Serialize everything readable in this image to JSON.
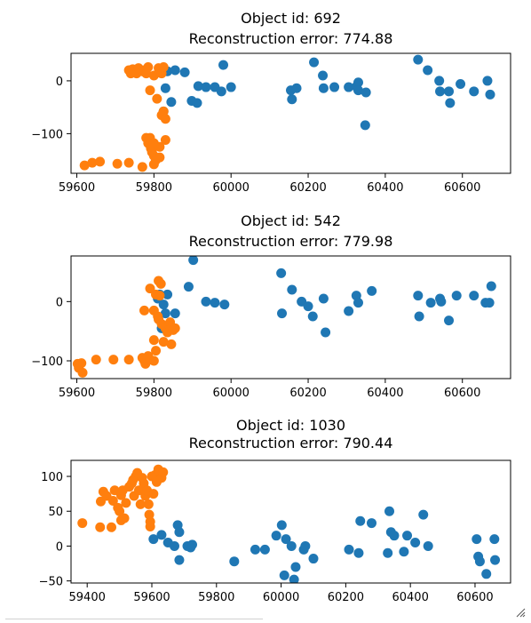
{
  "chart_data": [
    {
      "type": "scatter",
      "title": "Object id: 692\nReconstruction error: 774.88",
      "xlim": [
        59585,
        60725
      ],
      "ylim": [
        -175,
        52
      ],
      "xticks": [
        59600,
        59800,
        60000,
        60200,
        60400,
        60600
      ],
      "yticks": [
        -100,
        0
      ],
      "xlabel": "",
      "ylabel": "",
      "series": [
        {
          "color": "#1f77b4",
          "points": [
            [
              59825,
              -58
            ],
            [
              59830,
              -14
            ],
            [
              59835,
              18
            ],
            [
              59845,
              -40
            ],
            [
              59855,
              20
            ],
            [
              59880,
              16
            ],
            [
              59898,
              -38
            ],
            [
              59912,
              -42
            ],
            [
              59915,
              -10
            ],
            [
              59935,
              -12
            ],
            [
              59958,
              -12
            ],
            [
              59975,
              -20
            ],
            [
              59980,
              30
            ],
            [
              60000,
              -12
            ],
            [
              60155,
              -18
            ],
            [
              60158,
              -35
            ],
            [
              60170,
              -14
            ],
            [
              60215,
              35
            ],
            [
              60238,
              10
            ],
            [
              60240,
              -14
            ],
            [
              60268,
              -12
            ],
            [
              60305,
              -12
            ],
            [
              60325,
              -11
            ],
            [
              60330,
              -3
            ],
            [
              60330,
              -18
            ],
            [
              60348,
              -84
            ],
            [
              60350,
              -22
            ],
            [
              60485,
              40
            ],
            [
              60510,
              20
            ],
            [
              60540,
              0
            ],
            [
              60542,
              -20
            ],
            [
              60565,
              -20
            ],
            [
              60568,
              -42
            ],
            [
              60595,
              -6
            ],
            [
              60630,
              -20
            ],
            [
              60665,
              0
            ],
            [
              60672,
              -26
            ]
          ]
        },
        {
          "color": "#ff7f0e",
          "points": [
            [
              59620,
              -160
            ],
            [
              59640,
              -155
            ],
            [
              59660,
              -153
            ],
            [
              59705,
              -157
            ],
            [
              59735,
              -155
            ],
            [
              59770,
              -163
            ],
            [
              59735,
              20
            ],
            [
              59740,
              14
            ],
            [
              59745,
              22
            ],
            [
              59755,
              14
            ],
            [
              59760,
              24
            ],
            [
              59770,
              18
            ],
            [
              59775,
              20
            ],
            [
              59780,
              14
            ],
            [
              59785,
              26
            ],
            [
              59790,
              -18
            ],
            [
              59800,
              10
            ],
            [
              59808,
              -34
            ],
            [
              59812,
              24
            ],
            [
              59815,
              18
            ],
            [
              59820,
              14
            ],
            [
              59825,
              26
            ],
            [
              59820,
              -65
            ],
            [
              59825,
              -58
            ],
            [
              59830,
              -72
            ],
            [
              59830,
              -112
            ],
            [
              59780,
              -108
            ],
            [
              59785,
              -118
            ],
            [
              59790,
              -108
            ],
            [
              59792,
              -128
            ],
            [
              59795,
              -135
            ],
            [
              59800,
              -118
            ],
            [
              59800,
              -142
            ],
            [
              59805,
              -150
            ],
            [
              59815,
              -125
            ],
            [
              59815,
              -145
            ],
            [
              59800,
              -158
            ]
          ]
        }
      ]
    },
    {
      "type": "scatter",
      "title": "Object id: 542\nReconstruction error: 779.98",
      "xlim": [
        59585,
        60725
      ],
      "ylim": [
        -130,
        77
      ],
      "xticks": [
        59600,
        59800,
        60000,
        60200,
        60400,
        60600
      ],
      "yticks": [
        -100,
        0
      ],
      "xlabel": "",
      "ylabel": "",
      "series": [
        {
          "color": "#1f77b4",
          "points": [
            [
              59810,
              5
            ],
            [
              59815,
              12
            ],
            [
              59820,
              -45
            ],
            [
              59825,
              -5
            ],
            [
              59830,
              -20
            ],
            [
              59835,
              12
            ],
            [
              59855,
              -20
            ],
            [
              59890,
              25
            ],
            [
              59902,
              70
            ],
            [
              59935,
              0
            ],
            [
              59958,
              -2
            ],
            [
              59983,
              -5
            ],
            [
              60130,
              48
            ],
            [
              60132,
              -20
            ],
            [
              60158,
              20
            ],
            [
              60183,
              0
            ],
            [
              60200,
              -8
            ],
            [
              60212,
              -25
            ],
            [
              60240,
              5
            ],
            [
              60245,
              -52
            ],
            [
              60305,
              -16
            ],
            [
              60325,
              10
            ],
            [
              60330,
              -2
            ],
            [
              60365,
              18
            ],
            [
              60485,
              10
            ],
            [
              60488,
              -25
            ],
            [
              60518,
              -2
            ],
            [
              60542,
              5
            ],
            [
              60545,
              0
            ],
            [
              60565,
              -32
            ],
            [
              60585,
              10
            ],
            [
              60630,
              10
            ],
            [
              60660,
              -2
            ],
            [
              60670,
              -2
            ],
            [
              60675,
              26
            ]
          ]
        },
        {
          "color": "#ff7f0e",
          "points": [
            [
              59602,
              -105
            ],
            [
              59605,
              -112
            ],
            [
              59612,
              -104
            ],
            [
              59615,
              -120
            ],
            [
              59650,
              -98
            ],
            [
              59695,
              -98
            ],
            [
              59735,
              -98
            ],
            [
              59770,
              -95
            ],
            [
              59775,
              -100
            ],
            [
              59778,
              -105
            ],
            [
              59782,
              -97
            ],
            [
              59785,
              -92
            ],
            [
              59790,
              -98
            ],
            [
              59800,
              -65
            ],
            [
              59800,
              -100
            ],
            [
              59805,
              -83
            ],
            [
              59775,
              -15
            ],
            [
              59790,
              22
            ],
            [
              59800,
              -15
            ],
            [
              59805,
              12
            ],
            [
              59810,
              -25
            ],
            [
              59812,
              -30
            ],
            [
              59812,
              35
            ],
            [
              59815,
              10
            ],
            [
              59818,
              30
            ],
            [
              59820,
              -38
            ],
            [
              59825,
              -68
            ],
            [
              59830,
              -45
            ],
            [
              59835,
              -52
            ],
            [
              59840,
              -40
            ],
            [
              59842,
              -35
            ],
            [
              59845,
              -45
            ],
            [
              59850,
              -48
            ],
            [
              59845,
              -72
            ],
            [
              59855,
              -45
            ]
          ]
        }
      ]
    },
    {
      "type": "scatter",
      "title": "Object id: 1030\nReconstruction error: 790.44",
      "xlim": [
        59350,
        60710
      ],
      "ylim": [
        -53,
        123
      ],
      "xticks": [
        59400,
        59600,
        59800,
        60000,
        60200,
        60400,
        60600
      ],
      "yticks": [
        -50,
        0,
        50,
        100
      ],
      "xlabel": "",
      "ylabel": "",
      "series": [
        {
          "color": "#1f77b4",
          "points": [
            [
              59605,
              10
            ],
            [
              59630,
              16
            ],
            [
              59650,
              5
            ],
            [
              59670,
              0
            ],
            [
              59680,
              30
            ],
            [
              59685,
              -20
            ],
            [
              59685,
              20
            ],
            [
              59710,
              0
            ],
            [
              59720,
              -2
            ],
            [
              59725,
              2
            ],
            [
              59855,
              -22
            ],
            [
              59920,
              -5
            ],
            [
              59950,
              -5
            ],
            [
              59985,
              15
            ],
            [
              60002,
              30
            ],
            [
              60010,
              -42
            ],
            [
              60015,
              10
            ],
            [
              60032,
              0
            ],
            [
              60040,
              -48
            ],
            [
              60045,
              -30
            ],
            [
              60070,
              -5
            ],
            [
              60075,
              0
            ],
            [
              60100,
              -18
            ],
            [
              60210,
              -5
            ],
            [
              60240,
              -10
            ],
            [
              60245,
              36
            ],
            [
              60280,
              33
            ],
            [
              60330,
              -10
            ],
            [
              60335,
              50
            ],
            [
              60340,
              20
            ],
            [
              60350,
              15
            ],
            [
              60380,
              -8
            ],
            [
              60390,
              15
            ],
            [
              60415,
              5
            ],
            [
              60440,
              45
            ],
            [
              60455,
              0
            ],
            [
              60605,
              10
            ],
            [
              60610,
              -15
            ],
            [
              60615,
              -22
            ],
            [
              60635,
              -40
            ],
            [
              60660,
              10
            ],
            [
              60662,
              -20
            ]
          ]
        },
        {
          "color": "#ff7f0e",
          "points": [
            [
              59385,
              33
            ],
            [
              59440,
              27
            ],
            [
              59442,
              64
            ],
            [
              59450,
              78
            ],
            [
              59460,
              72
            ],
            [
              59475,
              27
            ],
            [
              59480,
              65
            ],
            [
              59485,
              80
            ],
            [
              59495,
              55
            ],
            [
              59500,
              50
            ],
            [
              59505,
              73
            ],
            [
              59505,
              37
            ],
            [
              59510,
              80
            ],
            [
              59515,
              40
            ],
            [
              59520,
              62
            ],
            [
              59530,
              85
            ],
            [
              59538,
              90
            ],
            [
              59542,
              95
            ],
            [
              59545,
              72
            ],
            [
              59550,
              100
            ],
            [
              59555,
              105
            ],
            [
              59560,
              80
            ],
            [
              59565,
              60
            ],
            [
              59570,
              98
            ],
            [
              59575,
              90
            ],
            [
              59580,
              72
            ],
            [
              59585,
              80
            ],
            [
              59590,
              60
            ],
            [
              59592,
              45
            ],
            [
              59595,
              35
            ],
            [
              59595,
              28
            ],
            [
              59600,
              100
            ],
            [
              59605,
              75
            ],
            [
              59610,
              102
            ],
            [
              59615,
              92
            ],
            [
              59620,
              110
            ],
            [
              59625,
              105
            ],
            [
              59630,
              98
            ],
            [
              59635,
              106
            ]
          ]
        }
      ]
    }
  ]
}
